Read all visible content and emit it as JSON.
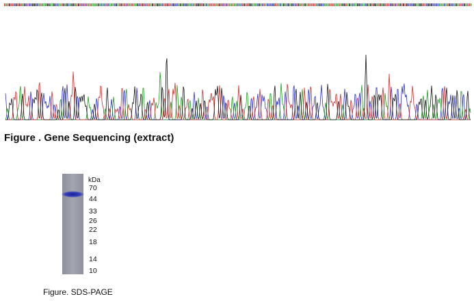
{
  "figure1": {
    "caption": "Figure . Gene Sequencing (extract)"
  },
  "figure2": {
    "unit": "kDa",
    "markers": [
      70,
      44,
      33,
      26,
      22,
      18,
      14,
      10
    ],
    "caption": "Figure. SDS-PAGE"
  }
}
